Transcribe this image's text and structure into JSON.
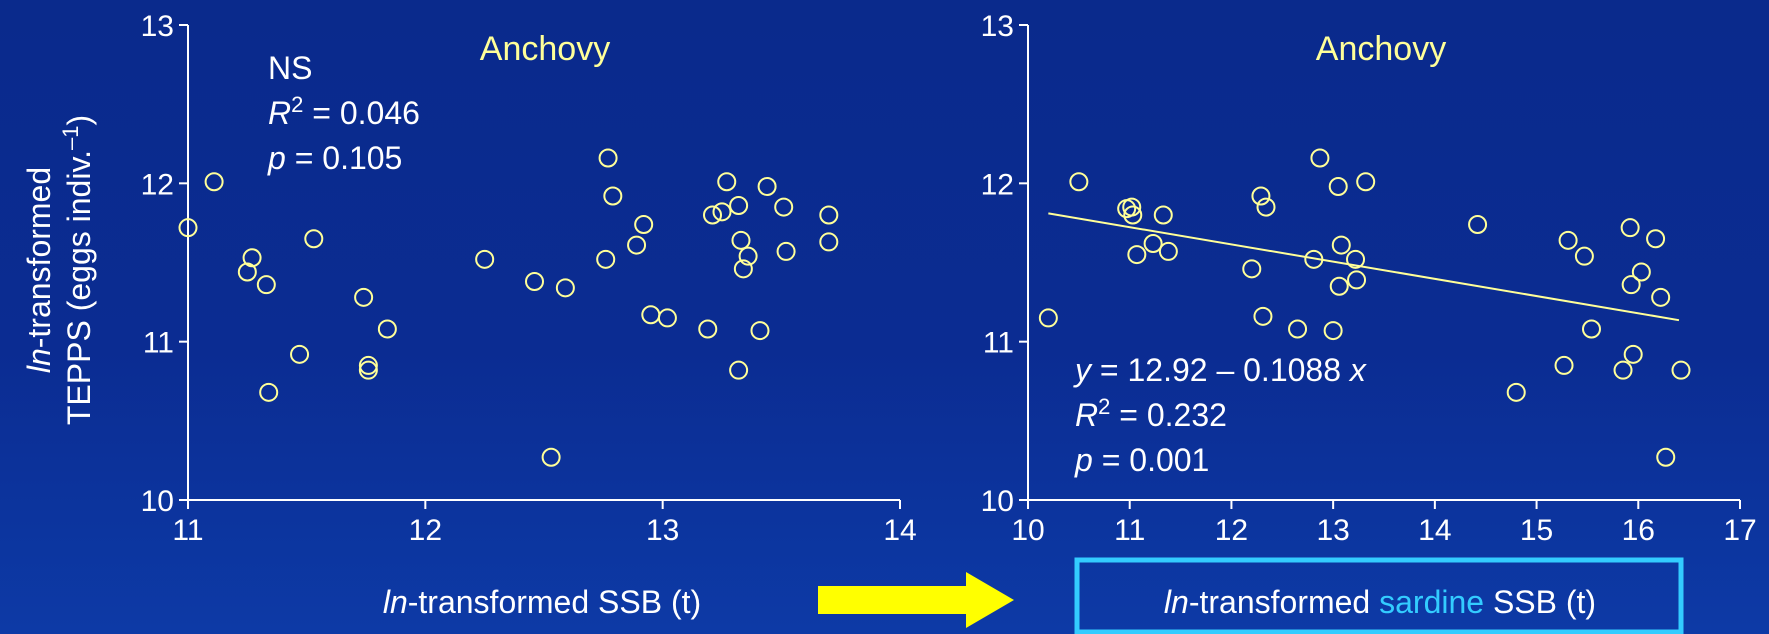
{
  "colors": {
    "point": "#ffff99",
    "fit_line": "#ffff99",
    "axis": "#ffffff",
    "title": "#ffff99",
    "highlight_text": "#33ccff",
    "highlight_box": "#33ccff",
    "arrow": "#ffff00"
  },
  "y_axis_title": {
    "line1_italic": "ln",
    "line1_rest": "-transformed",
    "line2": "TEPPS (eggs indiv.",
    "line2_exp": "–1",
    "line2_end": ")"
  },
  "chart_data": [
    {
      "type": "scatter",
      "title": "Anchovy",
      "xlim": [
        11,
        14
      ],
      "ylim": [
        10,
        13
      ],
      "xticks": [
        "11",
        "12",
        "13",
        "14"
      ],
      "yticks": [
        "10",
        "11",
        "12",
        "13"
      ],
      "xlabel": {
        "italic": "ln",
        "rest": "-transformed SSB (t)"
      },
      "stats": {
        "significance": "NS",
        "r2_label": "R",
        "r2_exp": "2",
        "r2_rest": " = 0.046",
        "p_label": "p",
        "p_rest": " = 0.105"
      },
      "points": [
        [
          11.0,
          11.72
        ],
        [
          11.11,
          12.01
        ],
        [
          11.25,
          11.44
        ],
        [
          11.27,
          11.53
        ],
        [
          11.33,
          11.36
        ],
        [
          11.34,
          10.68
        ],
        [
          11.47,
          10.92
        ],
        [
          11.53,
          11.65
        ],
        [
          11.74,
          11.28
        ],
        [
          11.76,
          10.85
        ],
        [
          11.76,
          10.82
        ],
        [
          11.84,
          11.08
        ],
        [
          12.25,
          11.52
        ],
        [
          12.46,
          11.38
        ],
        [
          12.53,
          10.27
        ],
        [
          12.59,
          11.34
        ],
        [
          12.76,
          11.52
        ],
        [
          12.77,
          12.16
        ],
        [
          12.79,
          11.92
        ],
        [
          12.89,
          11.61
        ],
        [
          12.92,
          11.74
        ],
        [
          12.95,
          11.17
        ],
        [
          13.02,
          11.15
        ],
        [
          13.19,
          11.08
        ],
        [
          13.21,
          11.8
        ],
        [
          13.25,
          11.82
        ],
        [
          13.27,
          12.01
        ],
        [
          13.32,
          11.86
        ],
        [
          13.32,
          10.82
        ],
        [
          13.33,
          11.64
        ],
        [
          13.34,
          11.46
        ],
        [
          13.36,
          11.54
        ],
        [
          13.41,
          11.07
        ],
        [
          13.44,
          11.98
        ],
        [
          13.51,
          11.85
        ],
        [
          13.52,
          11.57
        ],
        [
          13.7,
          11.8
        ],
        [
          13.7,
          11.63
        ]
      ]
    },
    {
      "type": "scatter",
      "title": "Anchovy",
      "xlim": [
        10,
        17
      ],
      "ylim": [
        10,
        13
      ],
      "xticks": [
        "10",
        "11",
        "12",
        "13",
        "14",
        "15",
        "16",
        "17"
      ],
      "yticks": [
        "10",
        "11",
        "12",
        "13"
      ],
      "xlabel": {
        "italic": "ln",
        "rest": "-transformed ",
        "highlight": "sardine",
        "end": " SSB (t)"
      },
      "stats": {
        "eq_y": "y",
        "eq_rest": " = 12.92 – 0.1088 ",
        "eq_x": "x",
        "r2_label": "R",
        "r2_exp": "2",
        "r2_rest": " = 0.232",
        "p_label": "p",
        "p_rest": " = 0.001"
      },
      "fit": {
        "intercept": 12.92,
        "slope": -0.1088,
        "x_range": [
          10.2,
          16.4
        ]
      },
      "points": [
        [
          10.2,
          11.15
        ],
        [
          10.5,
          12.01
        ],
        [
          10.97,
          11.84
        ],
        [
          11.02,
          11.85
        ],
        [
          11.03,
          11.8
        ],
        [
          11.07,
          11.55
        ],
        [
          11.23,
          11.62
        ],
        [
          11.33,
          11.8
        ],
        [
          11.38,
          11.57
        ],
        [
          12.2,
          11.46
        ],
        [
          12.29,
          11.92
        ],
        [
          12.31,
          11.16
        ],
        [
          12.34,
          11.85
        ],
        [
          12.65,
          11.08
        ],
        [
          12.81,
          11.52
        ],
        [
          12.87,
          12.16
        ],
        [
          13.0,
          11.07
        ],
        [
          13.05,
          11.98
        ],
        [
          13.06,
          11.35
        ],
        [
          13.08,
          11.61
        ],
        [
          13.22,
          11.52
        ],
        [
          13.23,
          11.39
        ],
        [
          13.32,
          12.01
        ],
        [
          14.42,
          11.74
        ],
        [
          14.8,
          10.68
        ],
        [
          15.27,
          10.85
        ],
        [
          15.31,
          11.64
        ],
        [
          15.47,
          11.54
        ],
        [
          15.54,
          11.08
        ],
        [
          15.85,
          10.82
        ],
        [
          15.92,
          11.72
        ],
        [
          15.93,
          11.36
        ],
        [
          15.95,
          10.92
        ],
        [
          16.03,
          11.44
        ],
        [
          16.17,
          11.65
        ],
        [
          16.22,
          11.28
        ],
        [
          16.27,
          10.27
        ],
        [
          16.42,
          10.82
        ]
      ]
    }
  ]
}
